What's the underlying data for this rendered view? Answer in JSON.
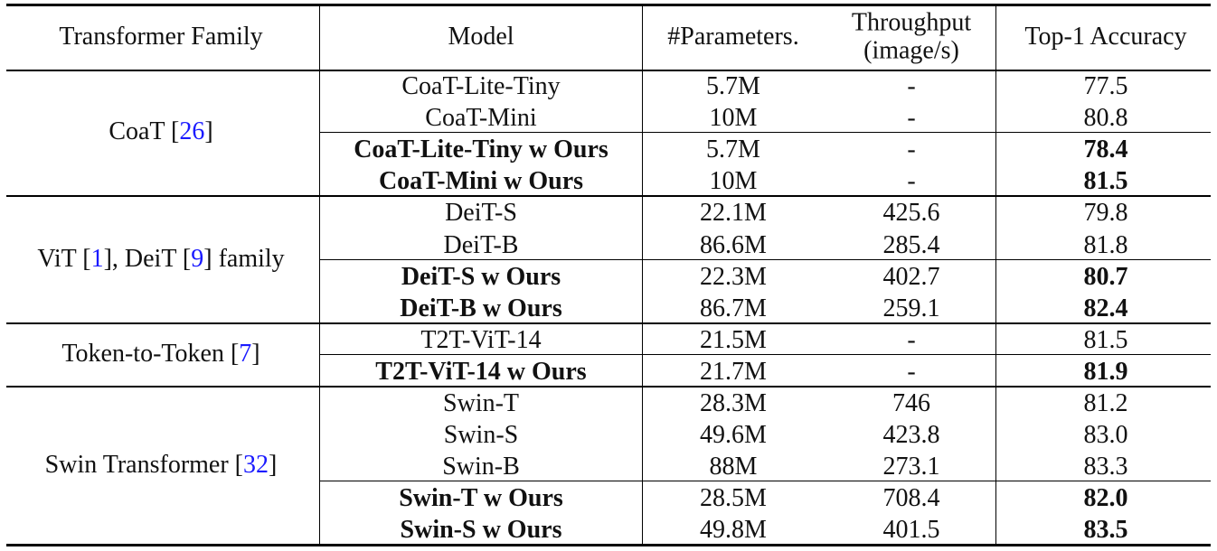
{
  "headers": {
    "family": "Transformer Family",
    "model": "Model",
    "params": "#Parameters.",
    "throughput_line1": "Throughput",
    "throughput_line2": "(image/s)",
    "accuracy": "Top-1 Accuracy"
  },
  "groups": [
    {
      "label_pre": "CoaT [",
      "label_ref": "26",
      "label_post": "]",
      "rows": [
        {
          "model": "CoaT-Lite-Tiny",
          "params": "5.7M",
          "throughput": "-",
          "accuracy": "77.5",
          "ours": false
        },
        {
          "model": "CoaT-Mini",
          "params": "10M",
          "throughput": "-",
          "accuracy": "80.8",
          "ours": false
        },
        {
          "model": "CoaT-Lite-Tiny w Ours",
          "params": "5.7M",
          "throughput": "-",
          "accuracy": "78.4",
          "ours": true
        },
        {
          "model": "CoaT-Mini w Ours",
          "params": "10M",
          "throughput": "-",
          "accuracy": "81.5",
          "ours": true
        }
      ]
    },
    {
      "label_pre": "ViT [",
      "label_ref": "1",
      "label_mid": "], DeiT [",
      "label_ref2": "9",
      "label_post": "] family",
      "rows": [
        {
          "model": "DeiT-S",
          "params": "22.1M",
          "throughput": "425.6",
          "accuracy": "79.8",
          "ours": false
        },
        {
          "model": "DeiT-B",
          "params": "86.6M",
          "throughput": "285.4",
          "accuracy": "81.8",
          "ours": false
        },
        {
          "model": "DeiT-S w Ours",
          "params": "22.3M",
          "throughput": "402.7",
          "accuracy": "80.7",
          "ours": true
        },
        {
          "model": "DeiT-B w Ours",
          "params": "86.7M",
          "throughput": "259.1",
          "accuracy": "82.4",
          "ours": true
        }
      ]
    },
    {
      "label_pre": "Token-to-Token [",
      "label_ref": "7",
      "label_post": "]",
      "rows": [
        {
          "model": "T2T-ViT-14",
          "params": "21.5M",
          "throughput": "-",
          "accuracy": "81.5",
          "ours": false
        },
        {
          "model": "T2T-ViT-14 w Ours",
          "params": "21.7M",
          "throughput": "-",
          "accuracy": "81.9",
          "ours": true
        }
      ]
    },
    {
      "label_pre": "Swin Transformer [",
      "label_ref": "32",
      "label_post": "]",
      "rows": [
        {
          "model": "Swin-T",
          "params": "28.3M",
          "throughput": "746",
          "accuracy": "81.2",
          "ours": false
        },
        {
          "model": "Swin-S",
          "params": "49.6M",
          "throughput": "423.8",
          "accuracy": "83.0",
          "ours": false
        },
        {
          "model": "Swin-B",
          "params": "88M",
          "throughput": "273.1",
          "accuracy": "83.3",
          "ours": false
        },
        {
          "model": "Swin-T w Ours",
          "params": "28.5M",
          "throughput": "708.4",
          "accuracy": "82.0",
          "ours": true
        },
        {
          "model": "Swin-S w Ours",
          "params": "49.8M",
          "throughput": "401.5",
          "accuracy": "83.5",
          "ours": true
        }
      ]
    }
  ]
}
